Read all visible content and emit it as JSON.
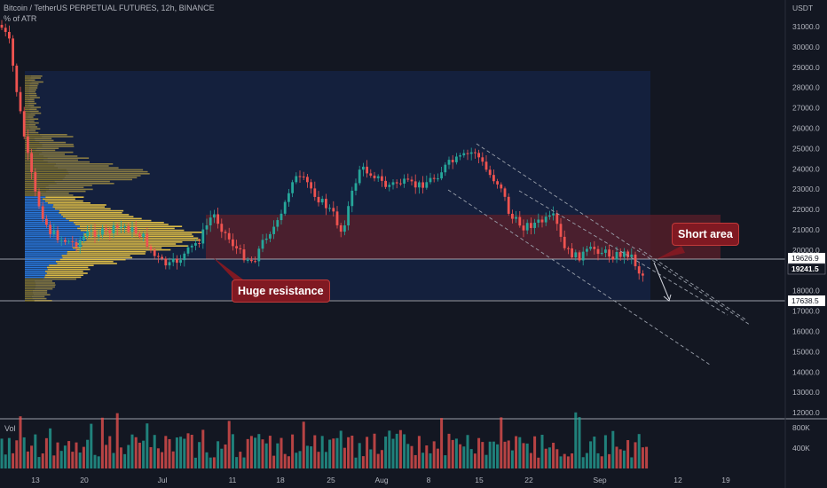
{
  "header": {
    "title": "Bitcoin / TetherUS PERPETUAL FUTURES, 12h, BINANCE",
    "indicator": "% of ATR"
  },
  "axis": {
    "currency": "USDT",
    "price_ticks": [
      "31000.0",
      "30000.0",
      "29000.0",
      "28000.0",
      "27000.0",
      "26000.0",
      "25000.0",
      "24000.0",
      "23000.0",
      "22000.0",
      "21000.0",
      "20000.0",
      "19000.0",
      "18000.0",
      "17000.0",
      "16000.0",
      "15000.0",
      "14000.0",
      "13000.0",
      "12000.0"
    ],
    "time_ticks": [
      "13",
      "20",
      "Jul",
      "11",
      "18",
      "25",
      "Aug",
      "8",
      "15",
      "22",
      "Sep",
      "12",
      "19"
    ],
    "volume_ticks": [
      "800K",
      "400K"
    ]
  },
  "price_tags": {
    "upper": "19626.9",
    "current": "19241.5",
    "lower": "17638.5"
  },
  "volume": {
    "label": "Vol"
  },
  "annotations": {
    "resistance": "Huge resistance",
    "short": "Short area"
  },
  "colors": {
    "background": "#131722",
    "up": "#26a69a",
    "down": "#ef5350",
    "zone_red": "#5c1f2a",
    "zone_blue": "#162447",
    "profile_yellow": "#e8c547",
    "profile_blue": "#2b7fe8"
  }
}
